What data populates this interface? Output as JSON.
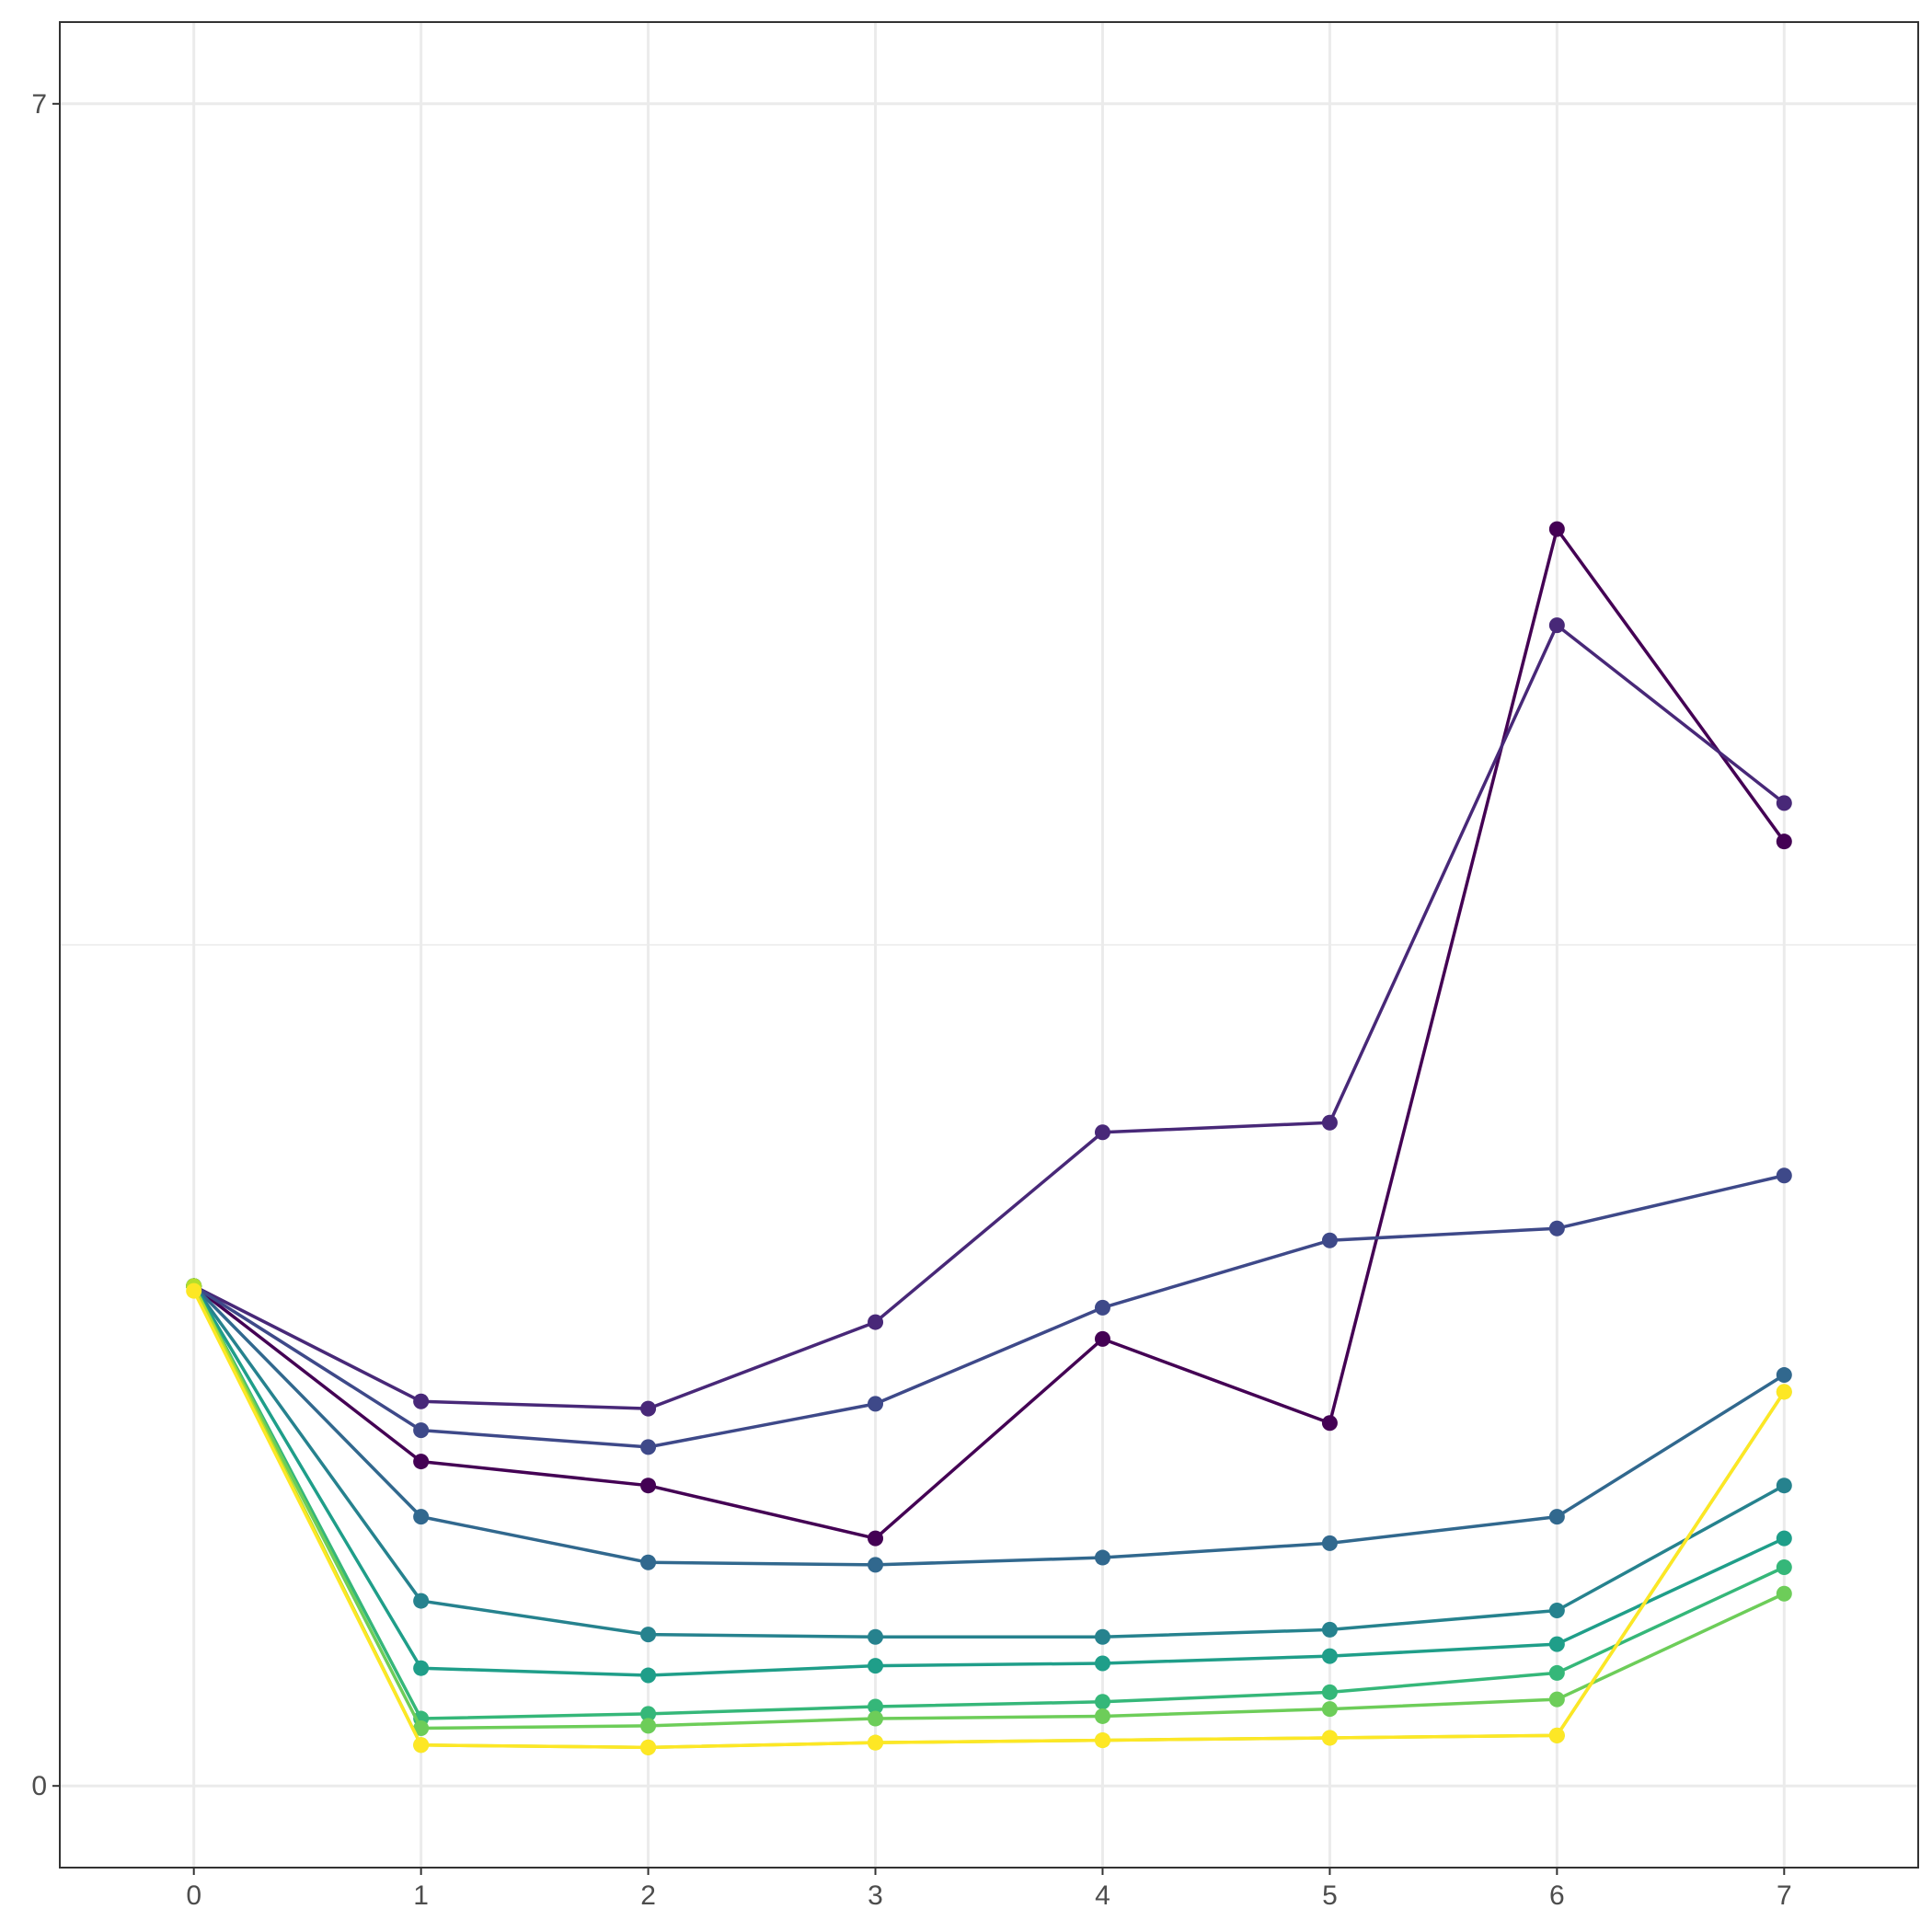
{
  "chart_data": {
    "type": "line",
    "title": "",
    "xlabel": "",
    "ylabel": "",
    "x": [
      0,
      1,
      2,
      3,
      4,
      5,
      6,
      7
    ],
    "xlim": [
      -0.59,
      7.59
    ],
    "ylim": [
      -0.34,
      7.34
    ],
    "x_ticks": [
      "0",
      "1",
      "2",
      "3",
      "4",
      "5",
      "6",
      "7"
    ],
    "y_ticks": [
      {
        "value": 0,
        "label": "0"
      },
      {
        "value": 7,
        "label": "7"
      }
    ],
    "y_minor_grid": [
      3.5
    ],
    "grid": true,
    "legend": "none",
    "series": [
      {
        "color": "#440154",
        "values": [
          2.08,
          1.35,
          1.25,
          1.03,
          1.86,
          1.51,
          5.23,
          3.93
        ]
      },
      {
        "color": "#482878",
        "values": [
          2.08,
          1.6,
          1.57,
          1.93,
          2.72,
          2.76,
          4.83,
          4.09
        ]
      },
      {
        "color": "#3E4989",
        "values": [
          2.08,
          1.48,
          1.41,
          1.59,
          1.99,
          2.27,
          2.32,
          2.54
        ]
      },
      {
        "color": "#31688E",
        "values": [
          2.08,
          1.12,
          0.93,
          0.92,
          0.95,
          1.01,
          1.12,
          1.71
        ]
      },
      {
        "color": "#26828E",
        "values": [
          2.08,
          0.77,
          0.63,
          0.62,
          0.62,
          0.65,
          0.73,
          1.25
        ]
      },
      {
        "color": "#1F9E89",
        "values": [
          2.08,
          0.49,
          0.46,
          0.5,
          0.51,
          0.54,
          0.59,
          1.03
        ]
      },
      {
        "color": "#35B779",
        "values": [
          2.08,
          0.28,
          0.3,
          0.33,
          0.35,
          0.39,
          0.47,
          0.91
        ]
      },
      {
        "color": "#6DCD59",
        "values": [
          2.08,
          0.24,
          0.25,
          0.28,
          0.29,
          0.32,
          0.36,
          0.8
        ]
      },
      {
        "color": "#B4DE2C",
        "values": [
          2.08,
          0.17,
          0.16,
          0.18,
          0.19,
          0.2,
          0.21,
          1.64
        ]
      },
      {
        "color": "#FDE725",
        "values": [
          2.06,
          0.17,
          0.16,
          0.18,
          0.19,
          0.2,
          0.21,
          1.64
        ]
      }
    ]
  }
}
